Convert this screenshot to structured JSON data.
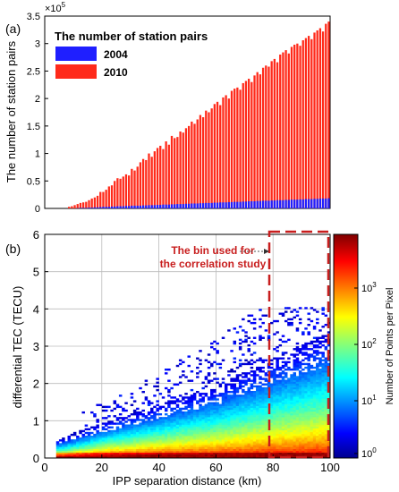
{
  "panel_a": {
    "label": "(a)",
    "exponent_label": "×10",
    "exponent_power": "5",
    "legend_title": "The number of station pairs",
    "legend_items": [
      "2004",
      "2010"
    ],
    "ylabel": "The number of station pairs",
    "yticks": [
      "0",
      "0.5",
      "1",
      "1.5",
      "2",
      "2.5",
      "3",
      "3.5"
    ]
  },
  "panel_b": {
    "label": "(b)",
    "annotation_line1": "The bin used for",
    "annotation_line2": "the correlation study",
    "ylabel": "differential TEC (TECU)",
    "xlabel": "IPP separation distance (km)",
    "xticks": [
      "0",
      "20",
      "40",
      "60",
      "80",
      "100"
    ],
    "yticks": [
      "0",
      "1",
      "2",
      "3",
      "4",
      "5",
      "6"
    ],
    "colorbar_label": "Number of Points per Pixel",
    "colorbar_ticks": [
      "10",
      "10",
      "10",
      "10"
    ],
    "colorbar_tick_exps": [
      "0",
      "1",
      "2",
      "3"
    ]
  },
  "colors": {
    "series_2004": "#1f1fff",
    "series_2010": "#ff2a1a",
    "annotation": "#c81e1e"
  },
  "chart_data": [
    {
      "type": "bar",
      "stacked": true,
      "title": "The number of station pairs",
      "ylabel": "The number of station pairs",
      "y_scale_label": "×10^5",
      "ylim": [
        0,
        3.5
      ],
      "legend_position": "top-left",
      "x_range_km": [
        0,
        100
      ],
      "bar_width_km": 1,
      "series": [
        {
          "name": "2004",
          "values": [
            0,
            0,
            0,
            0,
            0,
            0,
            0,
            0,
            0,
            0,
            0,
            0.005,
            0.01,
            0.01,
            0.01,
            0.015,
            0.015,
            0.02,
            0.02,
            0.025,
            0.03,
            0.03,
            0.03,
            0.035,
            0.035,
            0.04,
            0.04,
            0.04,
            0.045,
            0.045,
            0.05,
            0.05,
            0.05,
            0.05,
            0.055,
            0.055,
            0.06,
            0.06,
            0.06,
            0.065,
            0.065,
            0.07,
            0.07,
            0.07,
            0.075,
            0.075,
            0.08,
            0.08,
            0.08,
            0.085,
            0.085,
            0.09,
            0.09,
            0.09,
            0.095,
            0.095,
            0.1,
            0.1,
            0.1,
            0.105,
            0.105,
            0.11,
            0.11,
            0.11,
            0.115,
            0.115,
            0.12,
            0.12,
            0.12,
            0.125,
            0.125,
            0.13,
            0.13,
            0.13,
            0.135,
            0.135,
            0.14,
            0.14,
            0.14,
            0.145,
            0.145,
            0.15,
            0.15,
            0.15,
            0.155,
            0.155,
            0.16,
            0.16,
            0.16,
            0.165,
            0.165,
            0.17,
            0.17,
            0.17,
            0.175,
            0.175,
            0.18,
            0.18,
            0.18,
            0.185
          ]
        },
        {
          "name": "2010",
          "values": [
            0,
            0,
            0,
            0,
            0,
            0,
            0,
            0,
            0.03,
            0.04,
            0.06,
            0.08,
            0.1,
            0.11,
            0.12,
            0.15,
            0.18,
            0.2,
            0.23,
            0.3,
            0.3,
            0.34,
            0.4,
            0.42,
            0.5,
            0.55,
            0.54,
            0.58,
            0.62,
            0.6,
            0.72,
            0.69,
            0.76,
            0.84,
            0.9,
            0.88,
            1.0,
            0.94,
            1.04,
            1.1,
            1.14,
            1.08,
            1.22,
            1.16,
            1.32,
            1.28,
            1.3,
            1.4,
            1.38,
            1.46,
            1.5,
            1.58,
            1.54,
            1.62,
            1.7,
            1.66,
            1.78,
            1.75,
            1.82,
            1.9,
            1.94,
            1.88,
            2.02,
            2.06,
            2.0,
            2.14,
            2.18,
            2.2,
            2.16,
            2.28,
            2.32,
            2.36,
            2.3,
            2.42,
            2.48,
            2.44,
            2.56,
            2.6,
            2.58,
            2.68,
            2.72,
            2.66,
            2.8,
            2.84,
            2.88,
            2.82,
            2.94,
            2.98,
            3.0,
            2.96,
            3.06,
            3.1,
            3.14,
            3.08,
            3.2,
            3.24,
            3.28,
            3.22,
            3.36,
            3.4
          ]
        }
      ]
    },
    {
      "type": "heatmap",
      "xlabel": "IPP separation distance (km)",
      "ylabel": "differential TEC (TECU)",
      "xlim": [
        0,
        100
      ],
      "ylim": [
        0,
        6
      ],
      "grid": true,
      "colorbar": {
        "label": "Number of Points per Pixel",
        "scale": "log",
        "range": [
          1,
          10000
        ],
        "colormap": "jet"
      },
      "annotation": {
        "text": "The bin used for the correlation study",
        "highlight_x_range_km": [
          80,
          100
        ]
      }
    }
  ]
}
